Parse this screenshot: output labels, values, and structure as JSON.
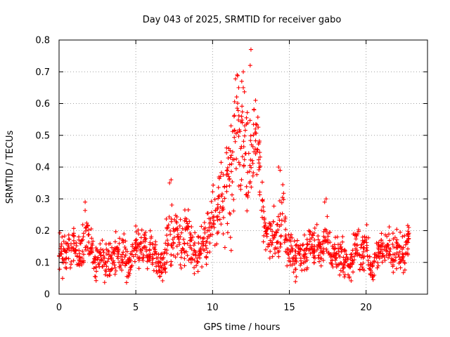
{
  "chart_data": {
    "type": "scatter",
    "title": "Day 043 of 2025, SRMTID for receiver gabo",
    "xlabel": "GPS time / hours",
    "ylabel": "SRMTID / TECUs",
    "xlim": [
      0,
      24
    ],
    "ylim": [
      0,
      0.8
    ],
    "xticks": [
      0,
      5,
      10,
      15,
      20
    ],
    "xtick_labels": [
      "0",
      "5",
      "10",
      "15",
      "20"
    ],
    "yticks": [
      0,
      0.1,
      0.2,
      0.3,
      0.4,
      0.5,
      0.6,
      0.7,
      0.8
    ],
    "ytick_labels": [
      "0",
      "0.1",
      "0.2",
      "0.3",
      "0.4",
      "0.5",
      "0.6",
      "0.7",
      "0.8"
    ],
    "grid": true,
    "marker": "+",
    "color": "#ff0000",
    "series": [
      {
        "name": "SRMTID",
        "x": [
          0.0,
          0.2,
          0.4,
          0.6,
          0.8,
          1.0,
          1.2,
          1.4,
          1.6,
          1.8,
          2.0,
          2.2,
          2.4,
          2.6,
          2.8,
          3.0,
          3.2,
          3.4,
          3.6,
          3.8,
          4.0,
          4.2,
          4.4,
          4.6,
          4.8,
          5.0,
          5.2,
          5.4,
          5.6,
          5.8,
          6.0,
          6.2,
          6.4,
          6.6,
          6.8,
          7.0,
          7.2,
          7.4,
          7.6,
          7.8,
          8.0,
          8.2,
          8.4,
          8.6,
          8.8,
          9.0,
          9.2,
          9.4,
          9.6,
          9.8,
          10.0,
          10.2,
          10.4,
          10.6,
          10.8,
          11.0,
          11.2,
          11.4,
          11.6,
          11.8,
          12.0,
          12.2,
          12.4,
          12.6,
          12.8,
          13.0,
          13.2,
          13.4,
          13.6,
          13.8,
          14.0,
          14.2,
          14.4,
          14.6,
          14.8,
          15.0,
          15.2,
          15.4,
          15.6,
          15.8,
          16.0,
          16.2,
          16.4,
          16.6,
          16.8,
          17.0,
          17.2,
          17.4,
          17.6,
          17.8,
          18.0,
          18.2,
          18.4,
          18.6,
          18.8,
          19.0,
          19.2,
          19.4,
          19.6,
          19.8,
          20.0,
          20.2,
          20.4,
          20.6,
          20.8,
          21.0,
          21.2,
          21.4,
          21.6,
          21.8,
          22.0,
          22.2,
          22.4,
          22.6,
          22.8
        ],
        "y": [
          0.16,
          0.13,
          0.12,
          0.14,
          0.11,
          0.17,
          0.13,
          0.12,
          0.15,
          0.19,
          0.16,
          0.12,
          0.1,
          0.11,
          0.13,
          0.1,
          0.11,
          0.09,
          0.12,
          0.14,
          0.11,
          0.15,
          0.1,
          0.09,
          0.13,
          0.16,
          0.14,
          0.15,
          0.17,
          0.13,
          0.15,
          0.12,
          0.1,
          0.09,
          0.08,
          0.16,
          0.2,
          0.16,
          0.22,
          0.18,
          0.14,
          0.16,
          0.2,
          0.15,
          0.13,
          0.12,
          0.14,
          0.18,
          0.16,
          0.2,
          0.25,
          0.24,
          0.29,
          0.27,
          0.31,
          0.36,
          0.33,
          0.43,
          0.52,
          0.47,
          0.52,
          0.43,
          0.4,
          0.46,
          0.5,
          0.44,
          0.27,
          0.22,
          0.18,
          0.17,
          0.2,
          0.16,
          0.23,
          0.3,
          0.17,
          0.14,
          0.12,
          0.11,
          0.14,
          0.12,
          0.13,
          0.15,
          0.18,
          0.14,
          0.16,
          0.14,
          0.13,
          0.2,
          0.14,
          0.12,
          0.13,
          0.11,
          0.12,
          0.1,
          0.08,
          0.09,
          0.12,
          0.16,
          0.13,
          0.14,
          0.16,
          0.1,
          0.07,
          0.12,
          0.11,
          0.14,
          0.13,
          0.15,
          0.14,
          0.12,
          0.15,
          0.13,
          0.11,
          0.13,
          0.18
        ],
        "spread": [
          0.05,
          0.06,
          0.05,
          0.05,
          0.05,
          0.06,
          0.06,
          0.05,
          0.08,
          0.05,
          0.05,
          0.05,
          0.05,
          0.05,
          0.05,
          0.05,
          0.05,
          0.05,
          0.06,
          0.06,
          0.05,
          0.05,
          0.05,
          0.05,
          0.05,
          0.05,
          0.06,
          0.06,
          0.05,
          0.06,
          0.05,
          0.05,
          0.05,
          0.05,
          0.04,
          0.07,
          0.1,
          0.08,
          0.07,
          0.07,
          0.06,
          0.08,
          0.07,
          0.06,
          0.06,
          0.05,
          0.05,
          0.06,
          0.07,
          0.07,
          0.09,
          0.08,
          0.1,
          0.1,
          0.12,
          0.14,
          0.15,
          0.14,
          0.15,
          0.14,
          0.14,
          0.17,
          0.15,
          0.12,
          0.08,
          0.1,
          0.08,
          0.06,
          0.05,
          0.05,
          0.05,
          0.05,
          0.1,
          0.08,
          0.06,
          0.05,
          0.05,
          0.05,
          0.05,
          0.05,
          0.05,
          0.06,
          0.06,
          0.05,
          0.05,
          0.05,
          0.05,
          0.08,
          0.05,
          0.05,
          0.05,
          0.05,
          0.05,
          0.05,
          0.04,
          0.05,
          0.05,
          0.05,
          0.05,
          0.05,
          0.06,
          0.04,
          0.04,
          0.05,
          0.05,
          0.05,
          0.05,
          0.05,
          0.05,
          0.05,
          0.05,
          0.05,
          0.05,
          0.05,
          0.04
        ]
      }
    ],
    "peak_points": [
      {
        "x": 12.5,
        "y": 0.77
      },
      {
        "x": 12.45,
        "y": 0.72
      },
      {
        "x": 12.0,
        "y": 0.7
      },
      {
        "x": 11.6,
        "y": 0.69
      },
      {
        "x": 12.0,
        "y": 0.65
      },
      {
        "x": 11.9,
        "y": 0.67
      },
      {
        "x": 11.7,
        "y": 0.65
      },
      {
        "x": 12.8,
        "y": 0.61
      },
      {
        "x": 12.7,
        "y": 0.58
      },
      {
        "x": 11.4,
        "y": 0.56
      },
      {
        "x": 11.2,
        "y": 0.53
      },
      {
        "x": 14.3,
        "y": 0.4
      },
      {
        "x": 14.4,
        "y": 0.39
      },
      {
        "x": 7.3,
        "y": 0.36
      },
      {
        "x": 7.2,
        "y": 0.35
      },
      {
        "x": 17.4,
        "y": 0.3
      },
      {
        "x": 17.3,
        "y": 0.29
      },
      {
        "x": 1.7,
        "y": 0.29
      }
    ]
  }
}
